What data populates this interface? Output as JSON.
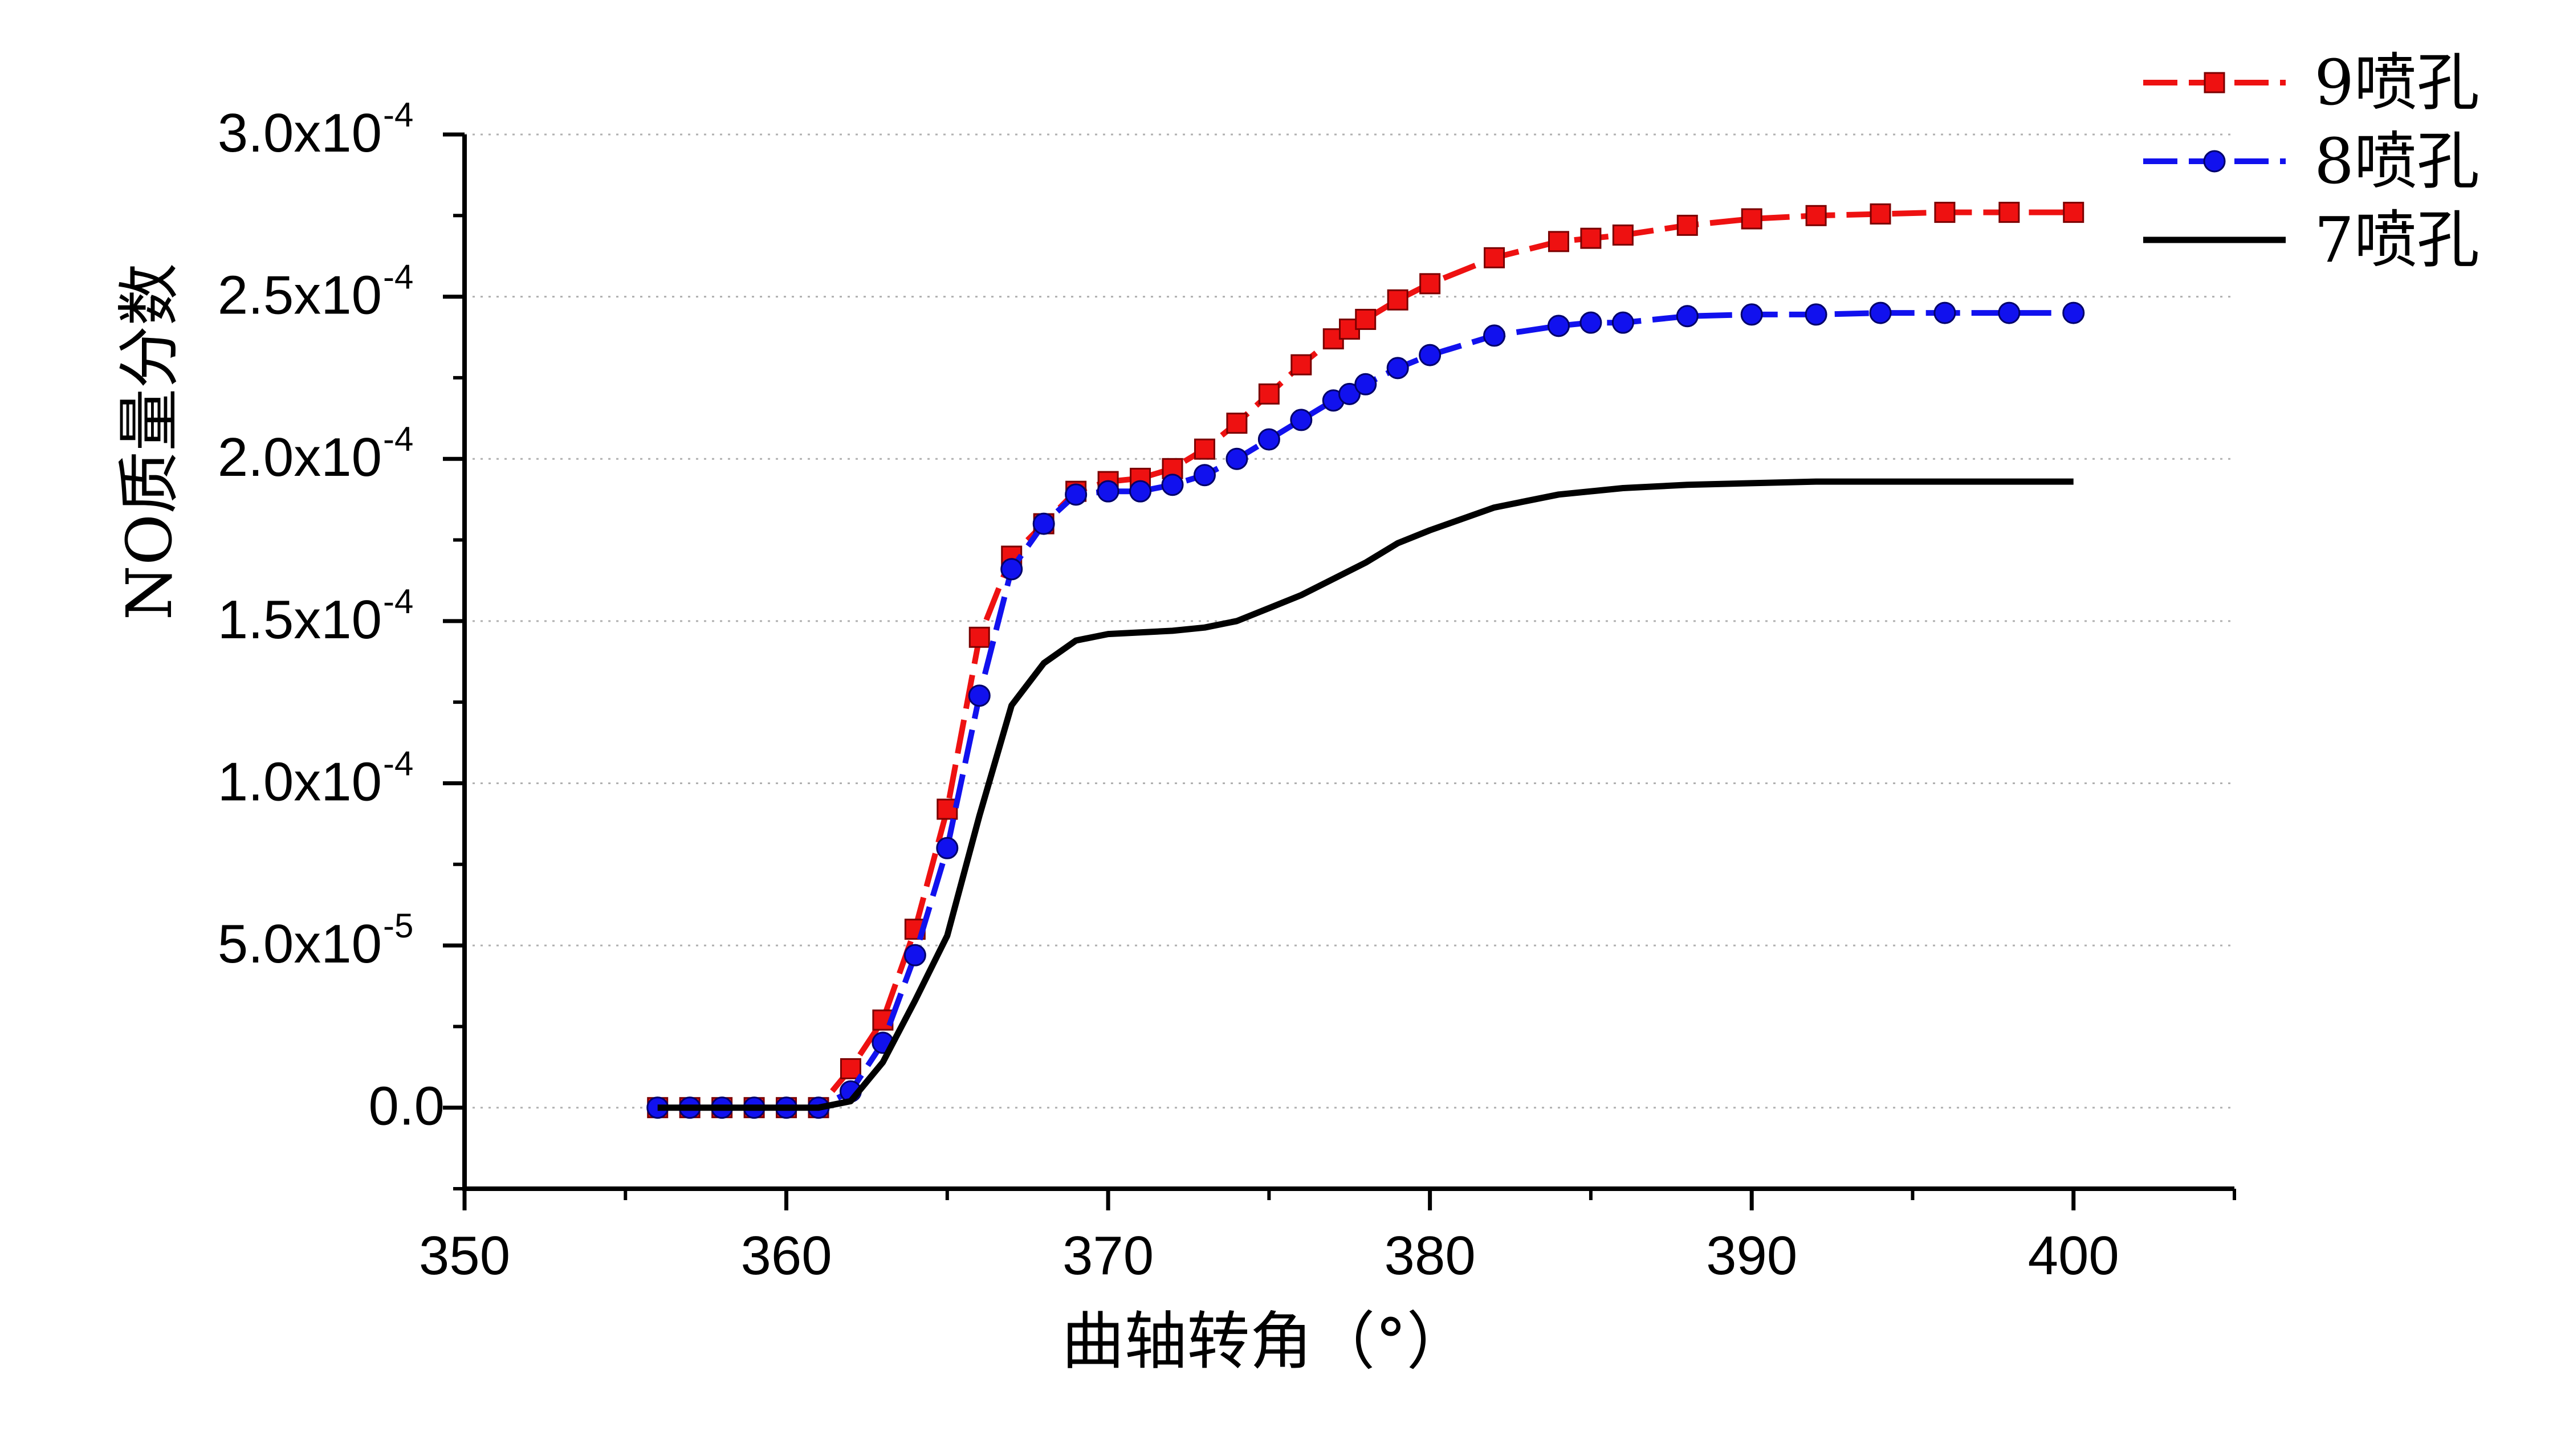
{
  "chart_data": {
    "type": "line",
    "title": "",
    "xlabel": "曲轴转角（°）",
    "ylabel": "NO质量分数",
    "xlim": [
      350,
      405
    ],
    "ylim": [
      -2.5e-05,
      0.0003
    ],
    "x_ticks": [
      350,
      360,
      370,
      380,
      390,
      400
    ],
    "x_tick_labels": [
      "350",
      "360",
      "370",
      "380",
      "390",
      "400"
    ],
    "y_ticks": [
      0,
      5e-05,
      0.0001,
      0.00015,
      0.0002,
      0.00025,
      0.0003
    ],
    "y_tick_labels": [
      {
        "mantissa": "0.0",
        "exp": ""
      },
      {
        "mantissa": "5.0x10",
        "exp": "-5"
      },
      {
        "mantissa": "1.0x10",
        "exp": "-4"
      },
      {
        "mantissa": "1.5x10",
        "exp": "-4"
      },
      {
        "mantissa": "2.0x10",
        "exp": "-4"
      },
      {
        "mantissa": "2.5x10",
        "exp": "-4"
      },
      {
        "mantissa": "3.0x10",
        "exp": "-4"
      }
    ],
    "grid": "horizontal dotted",
    "legend_position": "top-right",
    "series": [
      {
        "name": "9喷孔",
        "color": "#ee1111",
        "marker": "square",
        "line_style": "dashed",
        "x": [
          356,
          357,
          358,
          359,
          360,
          361,
          362,
          363,
          364,
          365,
          366,
          367,
          368,
          369,
          370,
          371,
          372,
          373,
          374,
          375,
          376,
          377,
          377.5,
          378,
          379,
          380,
          382,
          384,
          385,
          386,
          388,
          390,
          392,
          394,
          396,
          398,
          400
        ],
        "y": [
          0,
          0,
          0,
          0,
          0,
          0,
          1.2e-05,
          2.7e-05,
          5.5e-05,
          9.2e-05,
          0.000145,
          0.00017,
          0.00018,
          0.00019,
          0.000193,
          0.000194,
          0.000197,
          0.000203,
          0.000211,
          0.00022,
          0.000229,
          0.000237,
          0.00024,
          0.000243,
          0.000249,
          0.000254,
          0.000262,
          0.000267,
          0.000268,
          0.000269,
          0.000272,
          0.000274,
          0.000275,
          0.0002755,
          0.000276,
          0.000276,
          0.000276
        ]
      },
      {
        "name": "8喷孔",
        "color": "#1111ee",
        "marker": "circle",
        "line_style": "dashed",
        "x": [
          356,
          357,
          358,
          359,
          360,
          361,
          362,
          363,
          364,
          365,
          366,
          367,
          368,
          369,
          370,
          371,
          372,
          373,
          374,
          375,
          376,
          377,
          377.5,
          378,
          379,
          380,
          382,
          384,
          385,
          386,
          388,
          390,
          392,
          394,
          396,
          398,
          400
        ],
        "y": [
          0,
          0,
          0,
          0,
          0,
          0,
          5e-06,
          2e-05,
          4.7e-05,
          8e-05,
          0.000127,
          0.000166,
          0.00018,
          0.000189,
          0.00019,
          0.00019,
          0.000192,
          0.000195,
          0.0002,
          0.000206,
          0.000212,
          0.000218,
          0.00022,
          0.000223,
          0.000228,
          0.000232,
          0.000238,
          0.000241,
          0.000242,
          0.000242,
          0.000244,
          0.0002445,
          0.0002445,
          0.000245,
          0.000245,
          0.000245,
          0.000245
        ]
      },
      {
        "name": "7喷孔",
        "color": "#000000",
        "marker": "none",
        "line_style": "solid",
        "x": [
          356,
          357,
          358,
          359,
          360,
          361,
          362,
          363,
          364,
          365,
          366,
          367,
          368,
          369,
          370,
          372,
          373,
          374,
          375,
          376,
          378,
          379,
          380,
          382,
          384,
          386,
          388,
          390,
          392,
          394,
          396,
          398,
          400
        ],
        "y": [
          0,
          0,
          0,
          0,
          0,
          0,
          2e-06,
          1.4e-05,
          3.3e-05,
          5.3e-05,
          9e-05,
          0.000124,
          0.000137,
          0.000144,
          0.000146,
          0.000147,
          0.000148,
          0.00015,
          0.000154,
          0.000158,
          0.000168,
          0.000174,
          0.000178,
          0.000185,
          0.000189,
          0.000191,
          0.000192,
          0.0001925,
          0.000193,
          0.000193,
          0.000193,
          0.000193,
          0.000193
        ]
      }
    ]
  }
}
